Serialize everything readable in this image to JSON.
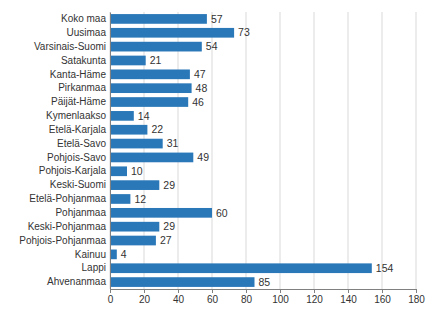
{
  "chart_data": {
    "type": "bar",
    "orientation": "horizontal",
    "categories": [
      "Koko maa",
      "Uusimaa",
      "Varsinais-Suomi",
      "Satakunta",
      "Kanta-Häme",
      "Pirkanmaa",
      "Päijät-Häme",
      "Kymenlaakso",
      "Etelä-Karjala",
      "Etelä-Savo",
      "Pohjois-Savo",
      "Pohjois-Karjala",
      "Keski-Suomi",
      "Etelä-Pohjanmaa",
      "Pohjanmaa",
      "Keski-Pohjanmaa",
      "Pohjois-Pohjanmaa",
      "Kainuu",
      "Lappi",
      "Ahvenanmaa"
    ],
    "values": [
      57,
      73,
      54,
      21,
      47,
      48,
      46,
      14,
      22,
      31,
      49,
      10,
      29,
      12,
      60,
      29,
      27,
      4,
      154,
      85
    ],
    "color": "#2b78b8",
    "xlim": [
      0,
      180
    ],
    "xticks": [
      0,
      20,
      40,
      60,
      80,
      100,
      120,
      140,
      160,
      180
    ],
    "grid": true,
    "data_labels": true
  }
}
